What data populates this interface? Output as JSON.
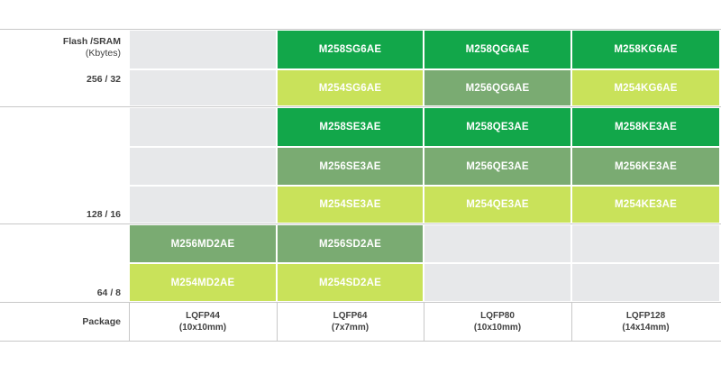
{
  "row_labels": {
    "header_title": "Flash /SRAM",
    "header_unit": "(Kbytes)",
    "group_256": "256 / 32",
    "group_128": "128 / 16",
    "group_64": "64 / 8",
    "package": "Package"
  },
  "colors": {
    "dark_green": "#12a74a",
    "medium_green": "#7aab72",
    "light_green": "#c9e25a",
    "empty_gray": "#e7e8ea"
  },
  "columns": [
    {
      "package": "LQFP44",
      "size": "(10x10mm)"
    },
    {
      "package": "LQFP64",
      "size": "(7x7mm)"
    },
    {
      "package": "LQFP80",
      "size": "(10x10mm)"
    },
    {
      "package": "LQFP128",
      "size": "(14x14mm)"
    }
  ],
  "rows": [
    [
      "",
      "M258SG6AE",
      "M258QG6AE",
      "M258KG6AE"
    ],
    [
      "",
      "M254SG6AE",
      "M256QG6AE",
      "M254KG6AE"
    ],
    [
      "",
      "M258SE3AE",
      "M258QE3AE",
      "M258KE3AE"
    ],
    [
      "",
      "M256SE3AE",
      "M256QE3AE",
      "M256KE3AE"
    ],
    [
      "",
      "M254SE3AE",
      "M254QE3AE",
      "M254KE3AE"
    ],
    [
      "M256MD2AE",
      "M256SD2AE",
      "",
      ""
    ],
    [
      "M254MD2AE",
      "M254SD2AE",
      "",
      ""
    ]
  ]
}
